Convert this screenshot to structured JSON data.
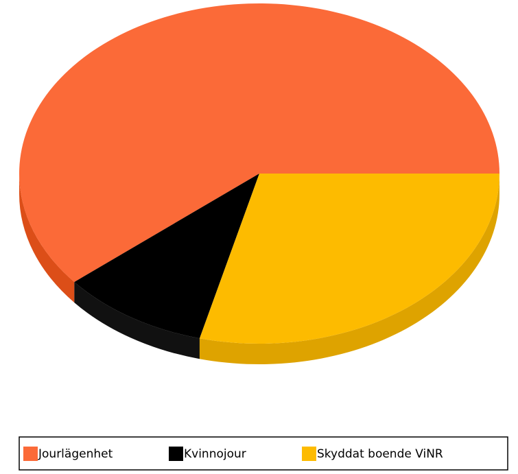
{
  "chart_data": {
    "type": "pie",
    "three_d": true,
    "categories": [
      "Jourlägenhet",
      "Kvinnojour",
      "Skyddat boende ViNR"
    ],
    "values": [
      61,
      10,
      29
    ],
    "colors": [
      "#fb6a38",
      "#000000",
      "#fdbb00"
    ],
    "side_colors": [
      "#dc4e18",
      "#111111",
      "#dea300"
    ],
    "legend": "bottom"
  }
}
